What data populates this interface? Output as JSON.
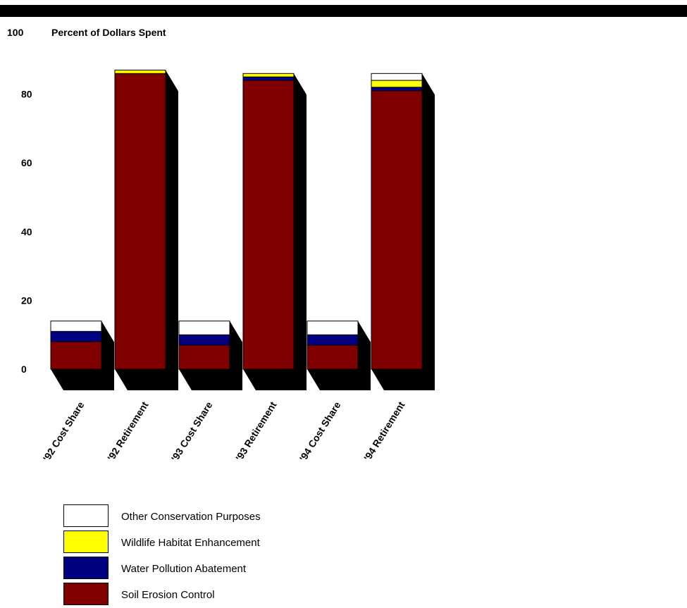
{
  "chart_data": {
    "type": "bar",
    "stacked": true,
    "title": "Percent of Dollars Spent",
    "xlabel": "",
    "ylabel": "",
    "ylim": [
      0,
      100
    ],
    "yticks": [
      0,
      20,
      40,
      60,
      80,
      100
    ],
    "categories": [
      "'92 Cost Share",
      "'92 Retirement",
      "'93 Cost Share",
      "'93 Retirement",
      "'94 Cost Share",
      "'94 Retirement"
    ],
    "series": [
      {
        "name": "Soil Erosion Control",
        "color": "#800000",
        "values": [
          8,
          86,
          7,
          84,
          7,
          81
        ]
      },
      {
        "name": "Water Pollution Abatement",
        "color": "#000080",
        "values": [
          3,
          0,
          3,
          1,
          3,
          1
        ]
      },
      {
        "name": "Wildlife Habitat Enhancement",
        "color": "#ffff00",
        "values": [
          0,
          1,
          0,
          1,
          0,
          2
        ]
      },
      {
        "name": "Other Conservation Purposes",
        "color": "#ffffff",
        "values": [
          3,
          0,
          4,
          0,
          4,
          2
        ]
      }
    ],
    "legend_position": "bottom-left",
    "grid": false
  },
  "legend_order": [
    "Other Conservation Purposes",
    "Wildlife Habitat Enhancement",
    "Water Pollution Abatement",
    "Soil Erosion Control"
  ]
}
